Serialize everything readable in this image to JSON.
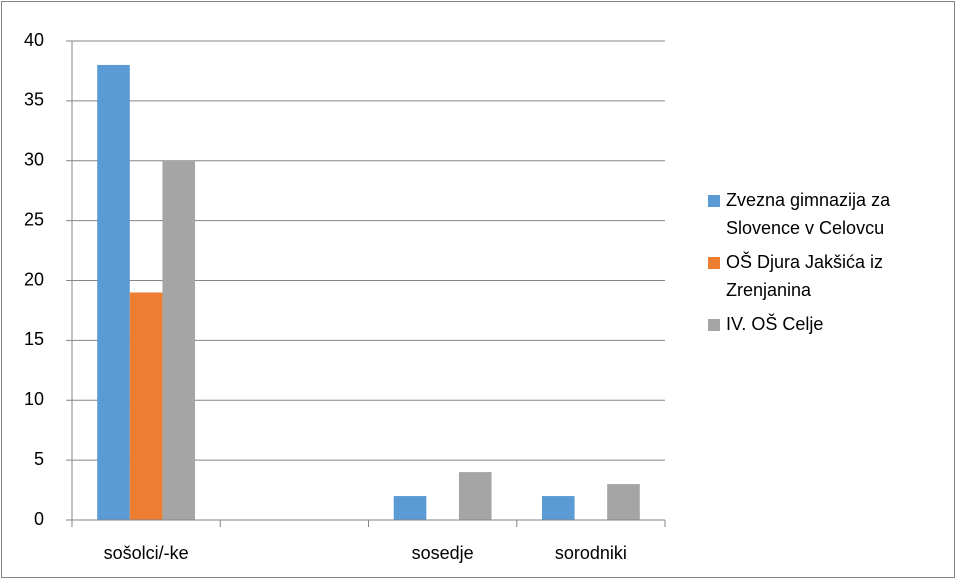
{
  "chart_data": {
    "type": "bar",
    "categories": [
      "sošolci/-ke",
      null,
      "sosedje",
      "sorodniki"
    ],
    "series": [
      {
        "name": "Zvezna gimnazija za Slovence v Celovcu",
        "color": "#5b9bd5",
        "values": [
          38,
          0,
          2,
          2
        ]
      },
      {
        "name": "OŠ Djura Jakšića iz Zrenjanina",
        "color": "#ed7d31",
        "values": [
          19,
          0,
          0,
          0
        ]
      },
      {
        "name": "IV. OŠ Celje",
        "color": "#a5a5a5",
        "values": [
          30,
          0,
          4,
          3
        ]
      }
    ],
    "ylim": [
      0,
      40
    ],
    "yticks": [
      0,
      5,
      10,
      15,
      20,
      25,
      30,
      35,
      40
    ],
    "grid": true,
    "legend": "right"
  }
}
